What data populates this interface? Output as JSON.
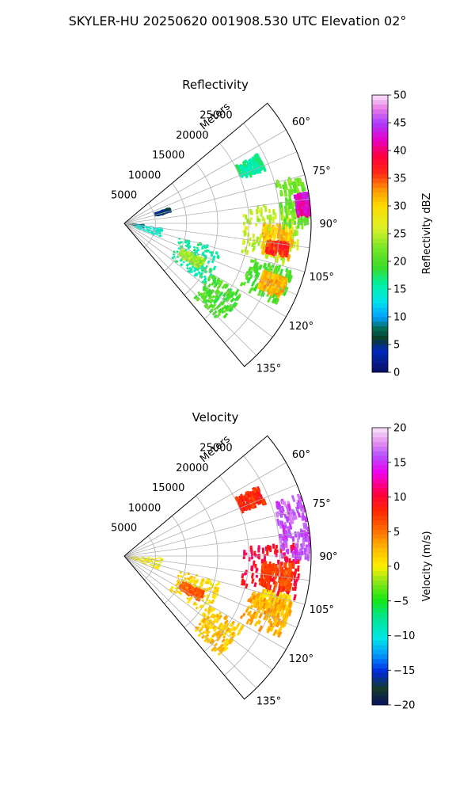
{
  "figure_title": "SKYLER-HU  20250620  001908.530 UTC Elevation 02°",
  "chart_data": [
    {
      "type": "heatmap",
      "projection": "polar-sector",
      "title": "Reflectivity",
      "radial_label": "Meters",
      "radial_ticks": [
        5000,
        10000,
        15000,
        20000,
        25000
      ],
      "radial_tick_labels": [
        "5000",
        "10000",
        "15000",
        "20000",
        "25000"
      ],
      "rlim": [
        0,
        30000
      ],
      "azimuth_range_deg": [
        50,
        140
      ],
      "azimuth_ticks": [
        60,
        75,
        90,
        105,
        120,
        135
      ],
      "azimuth_tick_labels": [
        "60°",
        "75°",
        "90°",
        "105°",
        "120°",
        "135°"
      ],
      "grid": true,
      "colorbar": {
        "label": "Reflectivity dBZ",
        "range": [
          0,
          50
        ],
        "ticks": [
          "0",
          "5",
          "10",
          "15",
          "20",
          "25",
          "30",
          "35",
          "40",
          "45",
          "50"
        ]
      },
      "echo_regions": [
        {
          "az": [
            82,
            103
          ],
          "r": [
            19000,
            28000
          ],
          "value": 25
        },
        {
          "az": [
            90,
            101
          ],
          "r": [
            22000,
            27000
          ],
          "value": 31
        },
        {
          "az": [
            96,
            100
          ],
          "r": [
            23000,
            26500
          ],
          "value": 36
        },
        {
          "az": [
            74,
            90
          ],
          "r": [
            25000,
            29500
          ],
          "value": 22
        },
        {
          "az": [
            80,
            86
          ],
          "r": [
            27500,
            29800
          ],
          "value": 42
        },
        {
          "az": [
            105,
            117
          ],
          "r": [
            21000,
            28000
          ],
          "value": 20
        },
        {
          "az": [
            108,
            114
          ],
          "r": [
            23500,
            27500
          ],
          "value": 32
        },
        {
          "az": [
            104,
            126
          ],
          "r": [
            9000,
            16000
          ],
          "value": 16
        },
        {
          "az": [
            113,
            120
          ],
          "r": [
            10000,
            14000
          ],
          "value": 24
        },
        {
          "az": [
            120,
            135
          ],
          "r": [
            16000,
            22000
          ],
          "value": 20
        },
        {
          "az": [
            92,
            104
          ],
          "r": [
            500,
            3000
          ],
          "value": 8
        },
        {
          "az": [
            96,
            110
          ],
          "r": [
            1500,
            6000
          ],
          "value": 14
        },
        {
          "az": [
            70,
            76
          ],
          "r": [
            5000,
            7500
          ],
          "value": 5
        },
        {
          "az": [
            62,
            68
          ],
          "r": [
            20000,
            24000
          ],
          "value": 16
        }
      ]
    },
    {
      "type": "heatmap",
      "projection": "polar-sector",
      "title": "Velocity",
      "radial_label": "Meters",
      "radial_ticks": [
        5000,
        10000,
        15000,
        20000,
        25000
      ],
      "radial_tick_labels": [
        "5000",
        "10000",
        "15000",
        "20000",
        "25000"
      ],
      "rlim": [
        0,
        30000
      ],
      "azimuth_range_deg": [
        50,
        140
      ],
      "azimuth_ticks": [
        60,
        75,
        90,
        105,
        120,
        135
      ],
      "azimuth_tick_labels": [
        "60°",
        "75°",
        "90°",
        "105°",
        "120°",
        "135°"
      ],
      "grid": true,
      "colorbar": {
        "label": "Velocity (m/s)",
        "range": [
          -20,
          20
        ],
        "ticks": [
          "−20",
          "−15",
          "−10",
          "−5",
          "0",
          "5",
          "10",
          "15",
          "20"
        ]
      },
      "echo_regions": [
        {
          "az": [
            85,
            103
          ],
          "r": [
            19000,
            28000
          ],
          "value": 10
        },
        {
          "az": [
            92,
            101
          ],
          "r": [
            22000,
            27000
          ],
          "value": 7
        },
        {
          "az": [
            70,
            90
          ],
          "r": [
            25000,
            29800
          ],
          "value": 16
        },
        {
          "az": [
            103,
            110
          ],
          "r": [
            22000,
            27500
          ],
          "value": 1
        },
        {
          "az": [
            105,
            117
          ],
          "r": [
            21000,
            28000
          ],
          "value": 3
        },
        {
          "az": [
            104,
            126
          ],
          "r": [
            9000,
            16000
          ],
          "value": 1
        },
        {
          "az": [
            113,
            120
          ],
          "r": [
            10000,
            14000
          ],
          "value": 6
        },
        {
          "az": [
            120,
            135
          ],
          "r": [
            16000,
            22000
          ],
          "value": 2
        },
        {
          "az": [
            92,
            110
          ],
          "r": [
            500,
            6000
          ],
          "value": 0
        },
        {
          "az": [
            62,
            68
          ],
          "r": [
            20000,
            24000
          ],
          "value": 8
        }
      ]
    }
  ]
}
